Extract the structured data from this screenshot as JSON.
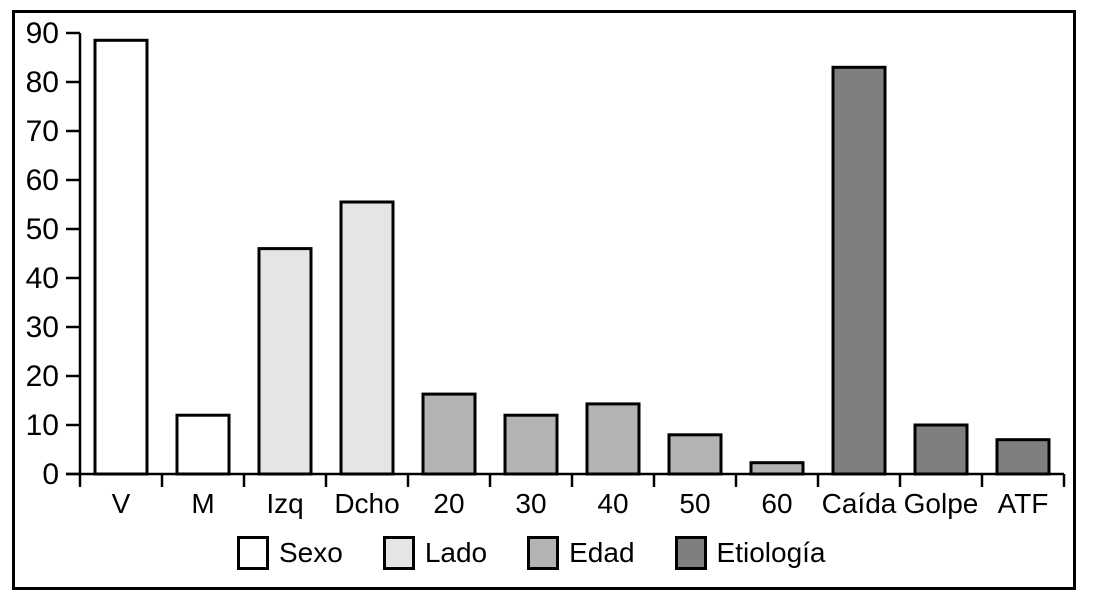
{
  "figure": {
    "background_color": "#ffffff",
    "frame_border_color": "#000000",
    "axis_color": "#000000",
    "bar_border_color": "#000000",
    "text_color": "#000000"
  },
  "chart_data": {
    "type": "bar",
    "title": "",
    "xlabel": "",
    "ylabel": "",
    "categories": [
      "V",
      "M",
      "Izq",
      "Dcho",
      "20",
      "30",
      "40",
      "50",
      "60",
      "Caída",
      "Golpe",
      "ATF"
    ],
    "values": [
      88.5,
      12,
      46,
      55.5,
      16.3,
      12,
      14.3,
      8,
      2.3,
      83,
      10,
      7
    ],
    "groups": [
      "Sexo",
      "Sexo",
      "Lado",
      "Lado",
      "Edad",
      "Edad",
      "Edad",
      "Edad",
      "Edad",
      "Etiología",
      "Etiología",
      "Etiología"
    ],
    "group_colors": {
      "Sexo": "#ffffff",
      "Lado": "#e5e5e5",
      "Edad": "#b3b3b3",
      "Etiología": "#7f7f7f"
    },
    "legend": [
      {
        "label": "Sexo",
        "color": "#ffffff"
      },
      {
        "label": "Lado",
        "color": "#e5e5e5"
      },
      {
        "label": "Edad",
        "color": "#b3b3b3"
      },
      {
        "label": "Etiología",
        "color": "#7f7f7f"
      }
    ],
    "legend_position": "bottom",
    "ylim": [
      0,
      90
    ],
    "ytick_step": 10,
    "ytick_labels": [
      "0",
      "10",
      "20",
      "30",
      "40",
      "50",
      "60",
      "70",
      "80",
      "90"
    ],
    "grid": false
  }
}
